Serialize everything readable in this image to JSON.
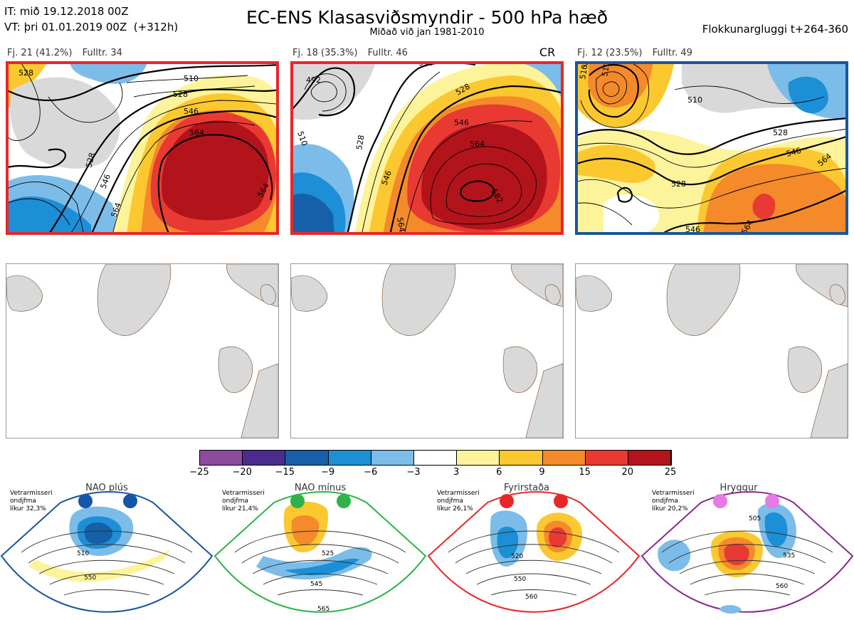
{
  "header": {
    "it_line": "IT: mið 19.12.2018 00Z",
    "vt_line": "VT: þri 01.01.2019 00Z  (+312h)",
    "title": "EC-ENS Klasasviðsmyndir - 500 hPa hæð",
    "subtitle": "Miðað við jan 1981-2010",
    "window": "Flokkunargluggi t+264-360"
  },
  "colors": {
    "red_frame": "#e8272b",
    "blue_frame": "#1a56a0",
    "land": "#d9d9d9",
    "coast": "#7a4a2a"
  },
  "clusters": [
    {
      "fj": "Fj. 21 (41.2%)",
      "fulltr": "Fulltr. 34",
      "frame": "red",
      "contours": [
        "528",
        "510",
        "528",
        "546",
        "564",
        "528",
        "546",
        "564",
        "564"
      ]
    },
    {
      "fj": "Fj. 18 (35.3%)",
      "fulltr": "Fulltr. 46",
      "tag": "CR",
      "frame": "red",
      "contours": [
        "510",
        "492",
        "528",
        "528",
        "546",
        "564",
        "546",
        "582",
        "510",
        "564"
      ]
    },
    {
      "fj": "Fj. 12 (23.5%)",
      "fulltr": "Fulltr. 49",
      "frame": "blue",
      "contours": [
        "510",
        "510",
        "528",
        "546",
        "564",
        "528",
        "546",
        "564"
      ]
    }
  ],
  "colorbar": {
    "colors": [
      "#8c4b9e",
      "#4a2c8e",
      "#1560a8",
      "#1d8fd6",
      "#7bbde8",
      "#ffffff",
      "#fdf39a",
      "#fcc830",
      "#f58a2a",
      "#e83a33",
      "#b3141c"
    ],
    "ticks": [
      "−25",
      "−20",
      "−15",
      "−9",
      "−6",
      "−3",
      "3",
      "6",
      "9",
      "15",
      "20",
      "25"
    ]
  },
  "regimes": [
    {
      "title": "NAO plús",
      "note_1": "Vetrarmisseri",
      "note_2": "ondjfma",
      "likur": "líkur 32,3%",
      "frame": "#1a56a0",
      "dot": "#1457a8",
      "contours": [
        "510",
        "550"
      ]
    },
    {
      "title": "NAO mínus",
      "note_1": "Vetrarmisseri",
      "note_2": "ondjfma",
      "likur": "líkur 21,4%",
      "frame": "#2db34a",
      "dot": "#2db34a",
      "contours": [
        "525",
        "545",
        "565"
      ]
    },
    {
      "title": "Fyrirstaða",
      "note_1": "Vetrarmisseri",
      "note_2": "ondjfma",
      "likur": "líkur 26,1%",
      "frame": "#e8272b",
      "dot": "#e8272b",
      "contours": [
        "520",
        "550",
        "560"
      ]
    },
    {
      "title": "Hryggur",
      "note_1": "Vetrarmisseri",
      "note_2": "ondjfma",
      "likur": "líkur 20,2%",
      "frame": "#8a2a90",
      "dot": "#e679e6",
      "contours": [
        "505",
        "535",
        "560"
      ]
    }
  ]
}
